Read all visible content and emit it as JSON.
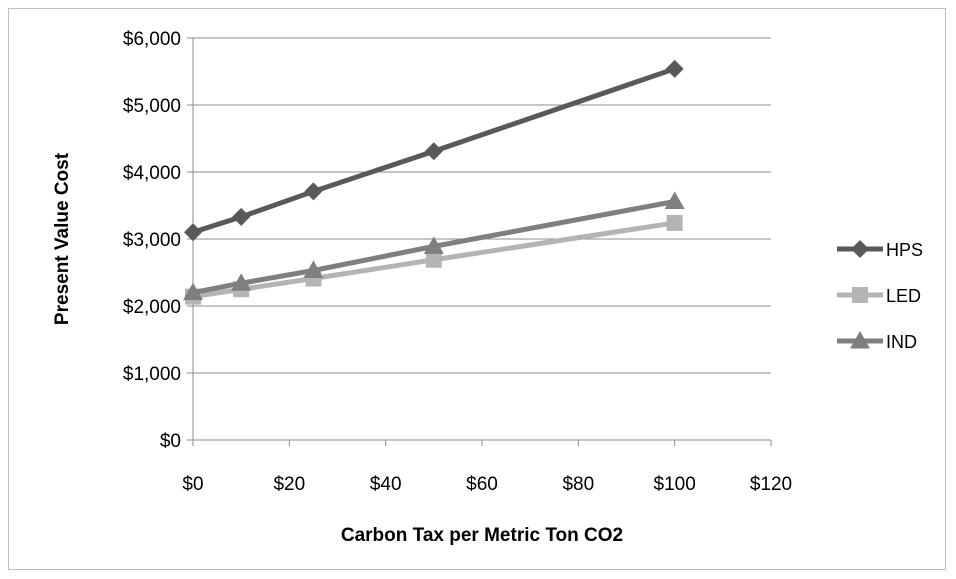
{
  "chart_data": {
    "type": "line",
    "title": "",
    "xlabel": "Carbon Tax per Metric Ton CO2",
    "ylabel": "Present Value Cost",
    "xlim": [
      0,
      120
    ],
    "ylim": [
      0,
      6000
    ],
    "x_ticks": [
      0,
      20,
      40,
      60,
      80,
      100,
      120
    ],
    "y_ticks": [
      0,
      1000,
      2000,
      3000,
      4000,
      5000,
      6000
    ],
    "x_tick_labels": [
      "$0",
      "$20",
      "$40",
      "$60",
      "$80",
      "$100",
      "$120"
    ],
    "y_tick_labels": [
      "$0",
      "$1,000",
      "$2,000",
      "$3,000",
      "$4,000",
      "$5,000",
      "$6,000"
    ],
    "grid": "horizontal",
    "legend_position": "right",
    "series": [
      {
        "name": "HPS",
        "marker": "diamond",
        "color": "#595959",
        "x": [
          0,
          10,
          25,
          50,
          100
        ],
        "values": [
          3100,
          3330,
          3710,
          4310,
          5540
        ]
      },
      {
        "name": "LED",
        "marker": "square",
        "color": "#b4b4b4",
        "x": [
          0,
          10,
          25,
          50,
          100
        ],
        "values": [
          2140,
          2250,
          2410,
          2690,
          3240
        ]
      },
      {
        "name": "IND",
        "marker": "triangle",
        "color": "#7f7f7f",
        "x": [
          0,
          10,
          25,
          50,
          100
        ],
        "values": [
          2200,
          2340,
          2530,
          2890,
          3560
        ]
      }
    ]
  }
}
